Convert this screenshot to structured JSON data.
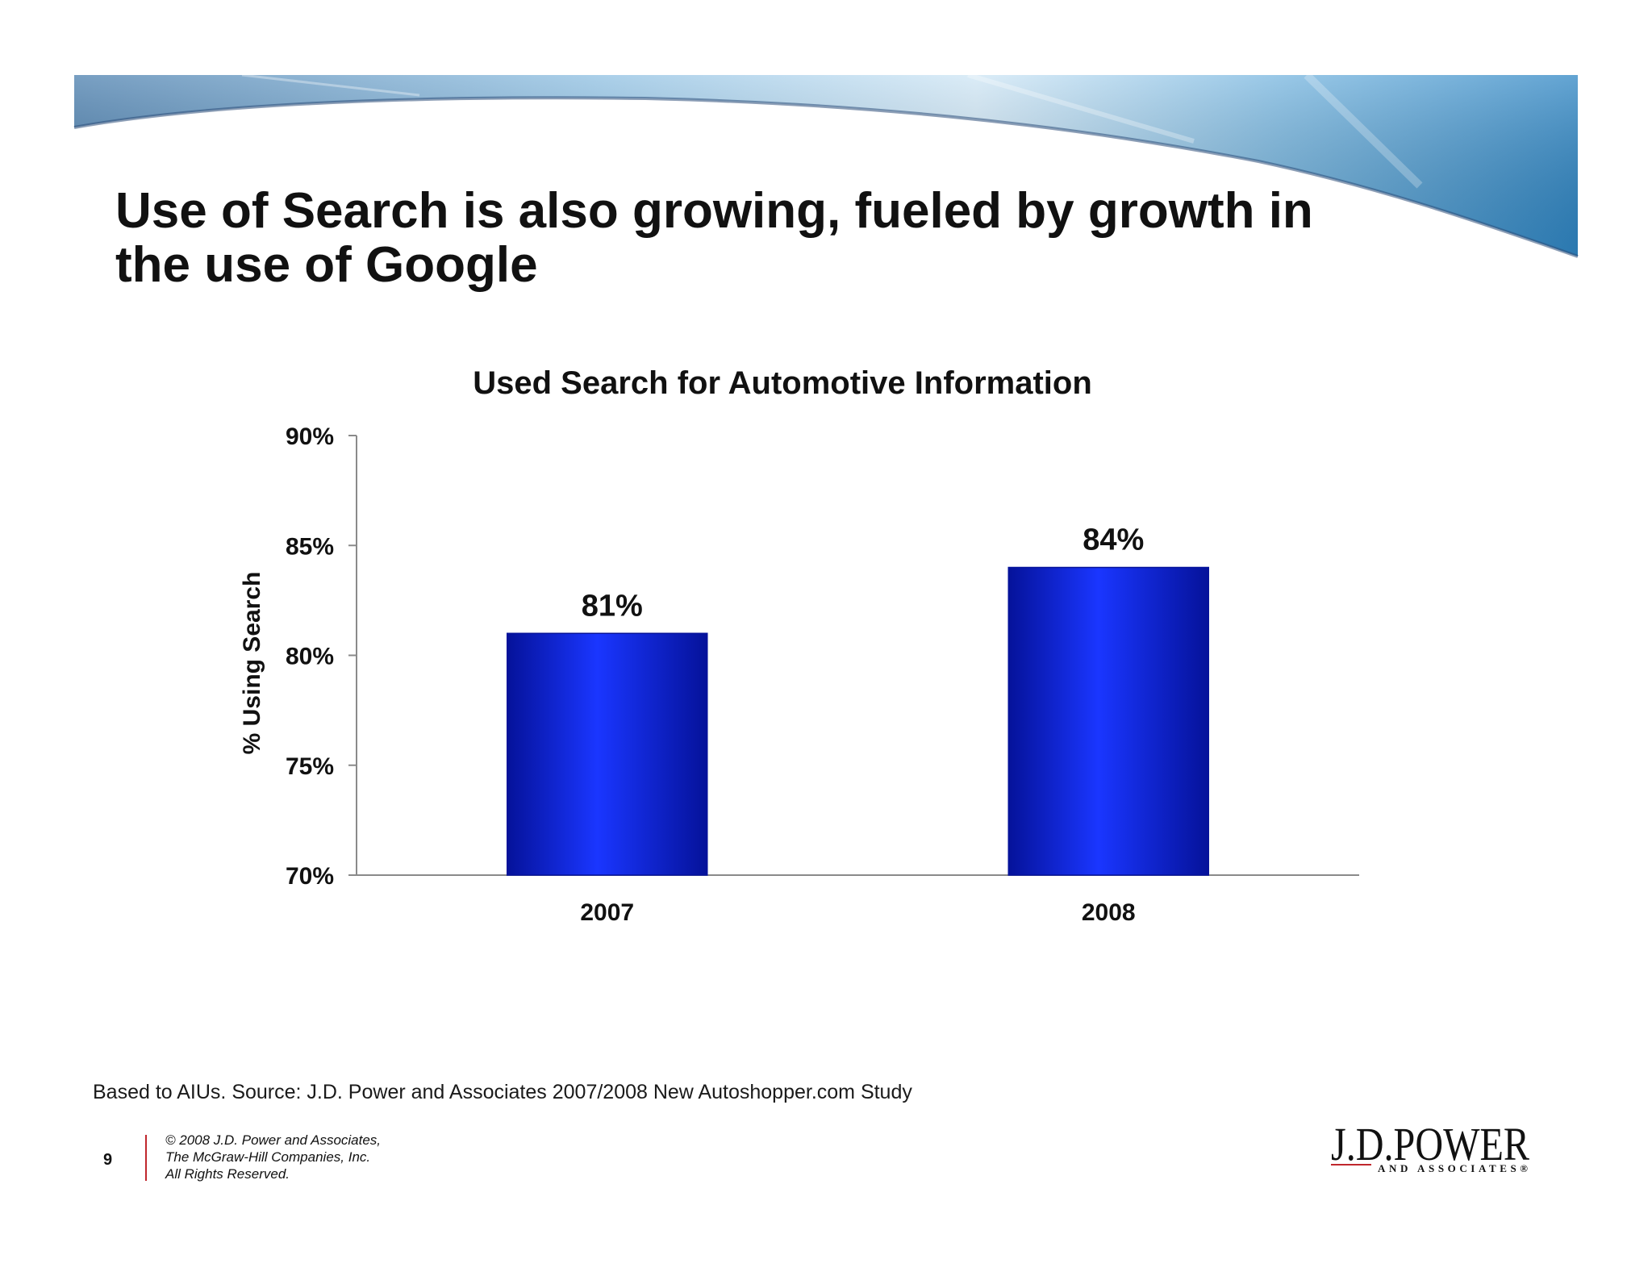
{
  "slide": {
    "title_lines": [
      "Use of Search is also growing, fueled by growth in",
      "the use of Google"
    ],
    "source_note": "Based to AIUs. Source: J.D. Power and Associates 2007/2008 New Autoshopper.com Study",
    "page_number": "9",
    "copyright_lines": [
      "© 2008 J.D. Power and Associates,",
      "The McGraw-Hill Companies, Inc.",
      "All Rights Reserved."
    ],
    "logo": {
      "name": "J.D.POWER",
      "tagline": "AND ASSOCIATES®"
    }
  },
  "colors": {
    "bar_dark": "#05129a",
    "bar_light": "#1a36ff",
    "banner_blue": "#3f8fc6",
    "logo_rule": "#c0272d"
  },
  "chart_data": {
    "type": "bar",
    "title": "Used Search for Automotive Information",
    "ylabel": "% Using Search",
    "xlabel": "",
    "categories": [
      "2007",
      "2008"
    ],
    "values": [
      81,
      84
    ],
    "data_labels": [
      "81%",
      "84%"
    ],
    "ylim": [
      70,
      90
    ],
    "yticks": [
      90,
      85,
      80,
      75,
      70
    ],
    "ytick_labels": [
      "90%",
      "85%",
      "80%",
      "75%",
      "70%"
    ],
    "grid": false,
    "legend": "none"
  }
}
